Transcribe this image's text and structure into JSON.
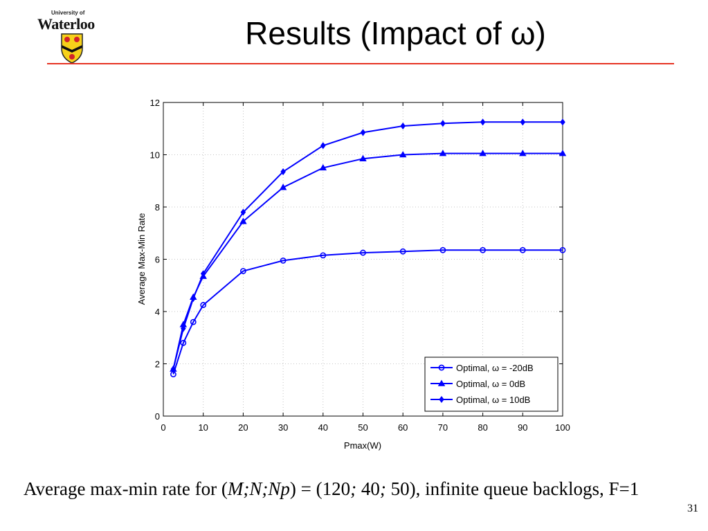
{
  "slide": {
    "title": "Results (Impact of ω)",
    "page_number": "31",
    "logo": {
      "line1": "University of",
      "line2": "Waterloo"
    },
    "caption": {
      "text1": "Average max-min rate for (",
      "var1": "M;N;Np",
      "text2": ") = (120",
      "sep1": ";",
      "text3": " 40",
      "sep2": ";",
      "text4": " 50), infinite queue backlogs, F=1"
    },
    "colors": {
      "rule": "#e63222",
      "series": "#0000ff"
    }
  },
  "chart_data": {
    "type": "line",
    "xlabel": "Pmax(W)",
    "ylabel": "Average Max-Min Rate",
    "xlim": [
      0,
      100
    ],
    "ylim": [
      0,
      12
    ],
    "xticks": [
      0,
      10,
      20,
      30,
      40,
      50,
      60,
      70,
      80,
      90,
      100
    ],
    "yticks": [
      0,
      2,
      4,
      6,
      8,
      10,
      12
    ],
    "grid": true,
    "legend_position": "bottom-right",
    "x": [
      2.5,
      5,
      7.5,
      10,
      20,
      30,
      40,
      50,
      60,
      70,
      80,
      90,
      100
    ],
    "series": [
      {
        "name": "Optimal, ω = -20dB",
        "marker": "circle",
        "values": [
          1.6,
          2.8,
          3.6,
          4.25,
          5.55,
          5.95,
          6.15,
          6.25,
          6.3,
          6.35,
          6.35,
          6.35,
          6.35
        ]
      },
      {
        "name": "Optimal, ω = 0dB",
        "marker": "triangle",
        "values": [
          1.8,
          3.5,
          4.55,
          5.35,
          7.45,
          8.75,
          9.5,
          9.85,
          10.0,
          10.05,
          10.05,
          10.05,
          10.05
        ]
      },
      {
        "name": "Optimal, ω = 10dB",
        "marker": "diamond",
        "values": [
          1.8,
          3.35,
          4.5,
          5.45,
          7.8,
          9.35,
          10.35,
          10.85,
          11.1,
          11.2,
          11.25,
          11.25,
          11.25
        ]
      }
    ]
  }
}
